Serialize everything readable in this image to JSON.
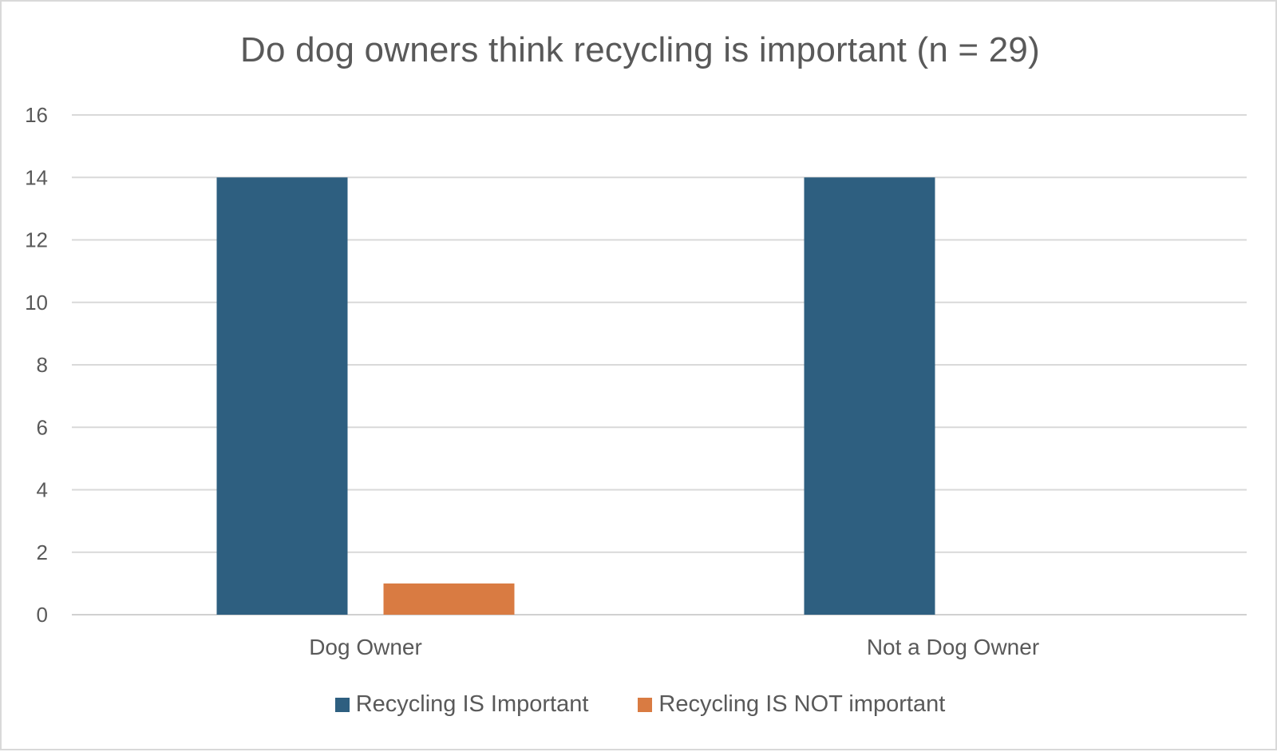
{
  "chart_data": {
    "type": "bar",
    "title": "Do dog owners think recycling is important (n = 29)",
    "xlabel": "",
    "ylabel": "",
    "categories": [
      "Dog Owner",
      "Not a Dog Owner"
    ],
    "series": [
      {
        "name": "Recycling IS Important",
        "values": [
          14,
          14
        ],
        "color": "#2e5f80"
      },
      {
        "name": "Recycling IS NOT important",
        "values": [
          1,
          0
        ],
        "color": "#d97b42"
      }
    ],
    "ylim": [
      0,
      16
    ],
    "yticks": [
      0,
      2,
      4,
      6,
      8,
      10,
      12,
      14,
      16
    ],
    "grid": true,
    "legend_position": "bottom"
  }
}
